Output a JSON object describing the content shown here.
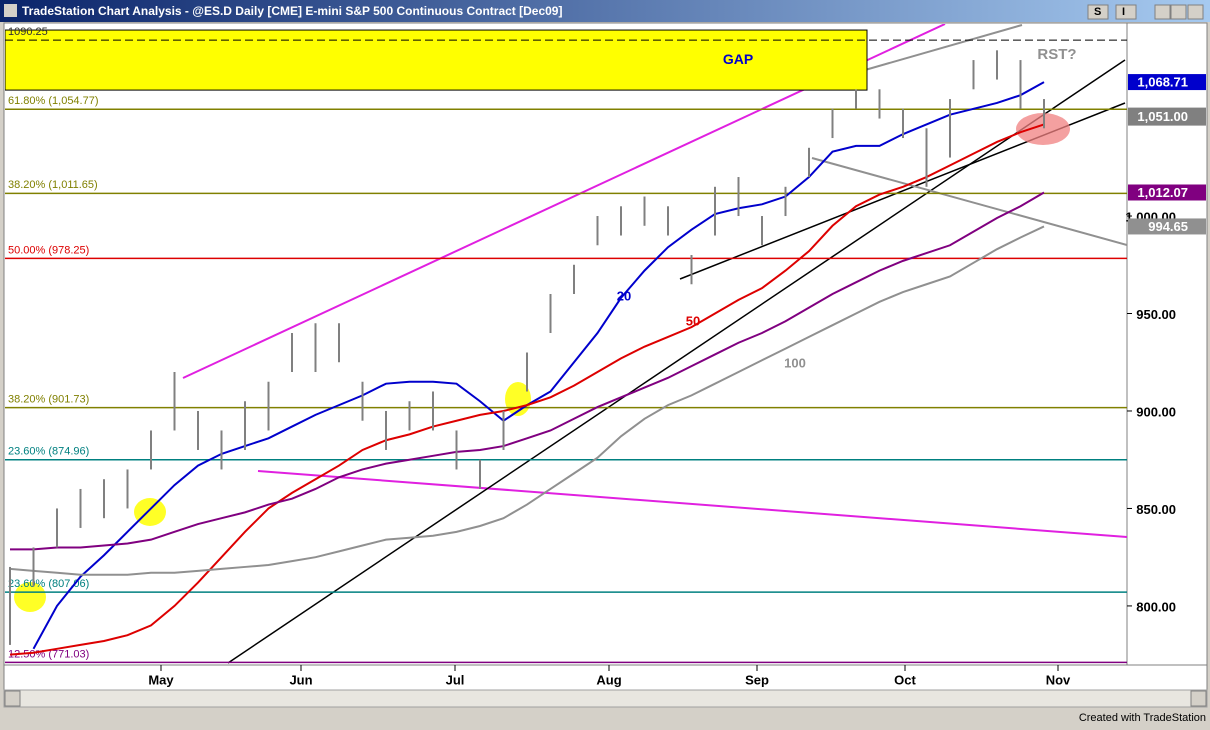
{
  "window": {
    "title": "TradeStation Chart Analysis - @ES.D Daily [CME] E-mini S&P 500 Continuous Contract [Dec09]",
    "footer": "Created with TradeStation",
    "buttons": [
      "S",
      "I"
    ]
  },
  "chart_data": {
    "type": "hilo",
    "xlabels": [
      "May",
      "Jun",
      "Jul",
      "Aug",
      "Sep",
      "Oct",
      "Nov"
    ],
    "high": [
      820,
      830,
      850,
      860,
      865,
      870,
      890,
      920,
      900,
      890,
      905,
      915,
      940,
      945,
      945,
      915,
      900,
      905,
      910,
      890,
      875,
      900,
      930,
      960,
      975,
      1000,
      1005,
      1010,
      1005,
      980,
      1015,
      1020,
      1000,
      1015,
      1035,
      1055,
      1065,
      1065,
      1055,
      1045,
      1060,
      1080,
      1085,
      1080,
      1060
    ],
    "low": [
      780,
      810,
      830,
      840,
      845,
      850,
      870,
      890,
      880,
      870,
      880,
      890,
      920,
      920,
      925,
      895,
      880,
      890,
      890,
      870,
      860,
      880,
      910,
      940,
      960,
      985,
      990,
      995,
      990,
      965,
      990,
      1000,
      985,
      1000,
      1020,
      1040,
      1055,
      1050,
      1040,
      1015,
      1030,
      1065,
      1070,
      1055,
      1045
    ],
    "series": [
      {
        "name": "20",
        "color": "#0000cc",
        "last_label": "1,068.71",
        "values": [
          null,
          778,
          800,
          815,
          826,
          838,
          850,
          862,
          872,
          878,
          882,
          886,
          892,
          898,
          903,
          908,
          914,
          915,
          915,
          914,
          905,
          895,
          903,
          910,
          925,
          940,
          958,
          972,
          984,
          993,
          1001,
          1004,
          1006,
          1010,
          1020,
          1033,
          1036,
          1036,
          1042,
          1047,
          1052,
          1055,
          1058,
          1062,
          1068.71
        ]
      },
      {
        "name": "50",
        "color": "#dd0000",
        "values": [
          775,
          776,
          778,
          780,
          782,
          785,
          790,
          800,
          812,
          825,
          838,
          850,
          858,
          865,
          872,
          880,
          885,
          888,
          892,
          895,
          898,
          900,
          903,
          907,
          913,
          920,
          927,
          933,
          938,
          943,
          950,
          957,
          963,
          972,
          982,
          995,
          1005,
          1011,
          1015,
          1020,
          1026,
          1032,
          1038,
          1043,
          1047
        ]
      },
      {
        "name": "100",
        "color": "#909090",
        "last_label": "994.65",
        "values": [
          819,
          818,
          817,
          816,
          816,
          816,
          817,
          817,
          818,
          819,
          820,
          821,
          823,
          825,
          828,
          831,
          834,
          835,
          836,
          838,
          841,
          845,
          852,
          860,
          868,
          876,
          887,
          896,
          903,
          908,
          914,
          920,
          926,
          932,
          938,
          944,
          950,
          956,
          961,
          965,
          969,
          976,
          983,
          989,
          994.65
        ]
      },
      {
        "color": "#800080",
        "last_label": "1,012.07",
        "values": [
          829,
          829,
          830,
          830,
          831,
          832,
          834,
          838,
          842,
          845,
          848,
          852,
          855,
          860,
          866,
          870,
          873,
          875,
          877,
          879,
          880,
          882,
          886,
          890,
          896,
          902,
          907,
          912,
          917,
          923,
          929,
          935,
          940,
          946,
          953,
          960,
          966,
          972,
          977,
          981,
          985,
          992,
          999,
          1005,
          1012.07
        ]
      }
    ],
    "last_price": {
      "value": 1051,
      "label": "1,051.00"
    },
    "levels": [
      {
        "value": 1054.77,
        "label": "61.80% (1,054.77)",
        "color": "#808000"
      },
      {
        "value": 1011.65,
        "label": "38.20% (1,011.65)",
        "color": "#808000"
      },
      {
        "value": 978.25,
        "label": "50.00% (978.25)",
        "color": "#dd0000"
      },
      {
        "value": 901.73,
        "label": "38.20% (901.73)",
        "color": "#808000"
      },
      {
        "value": 874.96,
        "label": "23.60% (874.96)",
        "color": "#008080"
      },
      {
        "value": 807.06,
        "label": "23.60% (807.06)",
        "color": "#008080"
      },
      {
        "value": 771.03,
        "label": "12.50% (771.03)",
        "color": "#800080"
      }
    ],
    "gap": {
      "label": "GAP",
      "top": 1095.4,
      "bottom": 1064.6,
      "color": "#ffff00"
    },
    "gap_line": {
      "value": 1090.25,
      "label": "1090.25"
    },
    "annotation": "RST?",
    "ylim": [
      769.7,
      1098.5
    ],
    "yticks": [
      {
        "value": 800,
        "label": "800.00"
      },
      {
        "value": 850,
        "label": "850.00"
      },
      {
        "value": 900,
        "label": "900.00"
      },
      {
        "value": 950,
        "label": "950.00"
      },
      {
        "value": 1000,
        "label": "1,000.00"
      }
    ]
  }
}
